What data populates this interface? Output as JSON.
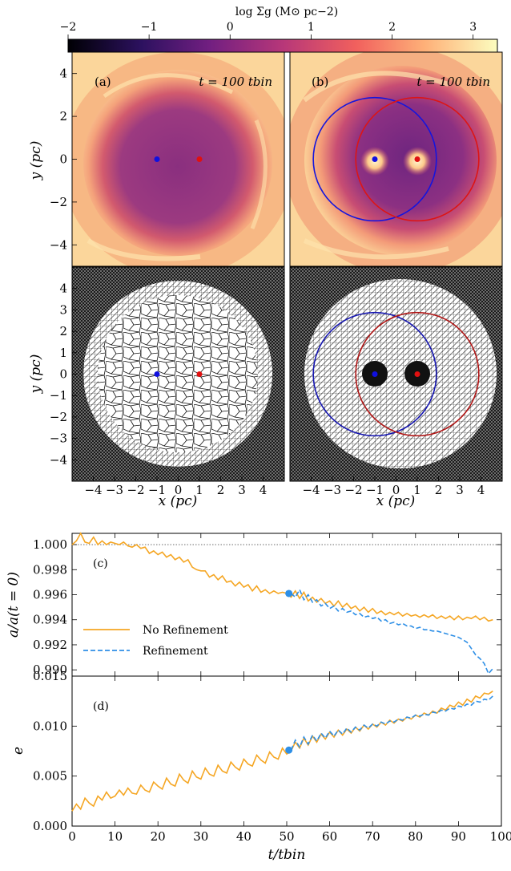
{
  "colorbar": {
    "label": "log Σg (M⊙ pc−2)",
    "ticks": [
      "−2",
      "−1",
      "0",
      "1",
      "2",
      "3"
    ],
    "tick_values": [
      -2,
      -1,
      0,
      1,
      2,
      3
    ],
    "range": [
      -2,
      3.3
    ],
    "colormap": [
      "#000004",
      "#2c115f",
      "#721f81",
      "#b73779",
      "#f1605d",
      "#feb078",
      "#fcfdbf"
    ]
  },
  "panels": {
    "a": {
      "label": "(a)",
      "time": "t = 100 tbin"
    },
    "b": {
      "label": "(b)",
      "time": "t = 100 tbin"
    }
  },
  "maps": {
    "ylabel": "y (pc)",
    "xlabel": "x (pc)",
    "yticks": [
      "4",
      "2",
      "0",
      "−2",
      "−4"
    ],
    "ytick_values": [
      4,
      2,
      0,
      -2,
      -4
    ],
    "mesh_yticks": [
      "4",
      "3",
      "2",
      "1",
      "0",
      "−1",
      "−2",
      "−3",
      "−4"
    ],
    "mesh_ytick_values": [
      4,
      3,
      2,
      1,
      0,
      -1,
      -2,
      -3,
      -4
    ],
    "xticks": [
      "−4",
      "−3",
      "−2",
      "−1",
      "0",
      "1",
      "2",
      "3",
      "4"
    ],
    "xtick_values": [
      -4,
      -3,
      -2,
      -1,
      0,
      1,
      2,
      3,
      4
    ],
    "range": [
      -5,
      5
    ],
    "blue_dot": {
      "x": -1,
      "y": 0,
      "color": "#1010e0"
    },
    "red_dot": {
      "x": 1,
      "y": 0,
      "color": "#e01010"
    },
    "circle_radius": 2.9
  },
  "chart_data": [
    {
      "type": "line",
      "panel_label": "(c)",
      "xlabel": "t/tbin",
      "ylabel": "a/a(t = 0)",
      "xlim": [
        0,
        100
      ],
      "ylim": [
        0.9895,
        1.0009
      ],
      "yticks": [
        "1.000",
        "0.998",
        "0.996",
        "0.994",
        "0.992",
        "0.990"
      ],
      "ytick_values": [
        1.0,
        0.998,
        0.996,
        0.994,
        0.992,
        0.99
      ],
      "reference_line": 1.0,
      "legend_position": "lower-left",
      "series": [
        {
          "name": "No Refinement",
          "color": "#f5a623",
          "style": "solid",
          "x": [
            0,
            1,
            2,
            3,
            4,
            5,
            6,
            7,
            8,
            9,
            10,
            11,
            12,
            13,
            14,
            15,
            16,
            17,
            18,
            19,
            20,
            21,
            22,
            23,
            24,
            25,
            26,
            27,
            28,
            29,
            30,
            31,
            32,
            33,
            34,
            35,
            36,
            37,
            38,
            39,
            40,
            41,
            42,
            43,
            44,
            45,
            46,
            47,
            48,
            49,
            50,
            51,
            52,
            53,
            54,
            55,
            56,
            57,
            58,
            59,
            60,
            61,
            62,
            63,
            64,
            65,
            66,
            67,
            68,
            69,
            70,
            71,
            72,
            73,
            74,
            75,
            76,
            77,
            78,
            79,
            80,
            81,
            82,
            83,
            84,
            85,
            86,
            87,
            88,
            89,
            90,
            91,
            92,
            93,
            94,
            95,
            96,
            97,
            98
          ],
          "y": [
            1.0,
            1.0003,
            1.0009,
            1.0002,
            1.0001,
            1.0006,
            1.0,
            1.0003,
            1.0,
            1.0002,
            1.0001,
            1.0,
            1.0002,
            0.9999,
            0.9998,
            1.0,
            0.9997,
            0.9998,
            0.9993,
            0.9995,
            0.9992,
            0.9994,
            0.999,
            0.9992,
            0.9988,
            0.999,
            0.9986,
            0.9988,
            0.9982,
            0.998,
            0.9979,
            0.9979,
            0.9974,
            0.9976,
            0.9972,
            0.9975,
            0.997,
            0.9971,
            0.9967,
            0.997,
            0.9966,
            0.9968,
            0.9963,
            0.9967,
            0.9962,
            0.9964,
            0.9961,
            0.9963,
            0.9961,
            0.9962,
            0.9961,
            0.9958,
            0.9963,
            0.9957,
            0.9962,
            0.9955,
            0.9958,
            0.9954,
            0.9957,
            0.9953,
            0.9955,
            0.9951,
            0.9955,
            0.995,
            0.9953,
            0.9949,
            0.9951,
            0.9947,
            0.995,
            0.9946,
            0.9949,
            0.9945,
            0.9947,
            0.9944,
            0.9946,
            0.9944,
            0.9946,
            0.9943,
            0.9945,
            0.9943,
            0.9944,
            0.9942,
            0.9944,
            0.9942,
            0.9944,
            0.9941,
            0.9943,
            0.9941,
            0.9943,
            0.994,
            0.9943,
            0.994,
            0.9942,
            0.9941,
            0.9943,
            0.994,
            0.9942,
            0.9939,
            0.994
          ]
        },
        {
          "name": "Refinement",
          "color": "#2e8fe6",
          "style": "dashed",
          "x": [
            51,
            52,
            53,
            54,
            55,
            56,
            57,
            58,
            59,
            60,
            61,
            62,
            63,
            64,
            65,
            66,
            67,
            68,
            69,
            70,
            71,
            72,
            73,
            74,
            75,
            76,
            77,
            78,
            79,
            80,
            81,
            82,
            83,
            84,
            85,
            86,
            87,
            88,
            89,
            90,
            91,
            92,
            93,
            94,
            95,
            96,
            97,
            98
          ],
          "y": [
            0.9961,
            0.9958,
            0.9964,
            0.9956,
            0.996,
            0.9954,
            0.9956,
            0.9951,
            0.9953,
            0.9949,
            0.9951,
            0.9947,
            0.9949,
            0.9946,
            0.9947,
            0.9944,
            0.9945,
            0.9942,
            0.9943,
            0.9941,
            0.9942,
            0.9939,
            0.994,
            0.9937,
            0.9938,
            0.9936,
            0.9937,
            0.9935,
            0.9935,
            0.9933,
            0.9934,
            0.9932,
            0.9932,
            0.9931,
            0.9931,
            0.993,
            0.9929,
            0.9928,
            0.9927,
            0.9926,
            0.9924,
            0.9922,
            0.9917,
            0.9912,
            0.9909,
            0.9905,
            0.9897,
            0.9901
          ]
        }
      ],
      "marker": {
        "x": 50.5,
        "y": 0.9961,
        "color": "#2e8fe6"
      }
    },
    {
      "type": "line",
      "panel_label": "(d)",
      "xlabel": "t/tbin",
      "ylabel": "e",
      "xlim": [
        0,
        100
      ],
      "ylim": [
        0,
        0.015
      ],
      "yticks": [
        "0.015",
        "0.010",
        "0.005",
        "0.000"
      ],
      "ytick_values": [
        0.015,
        0.01,
        0.005,
        0.0
      ],
      "xticks": [
        "0",
        "10",
        "20",
        "30",
        "40",
        "50",
        "60",
        "70",
        "80",
        "90",
        "100"
      ],
      "xtick_values": [
        0,
        10,
        20,
        30,
        40,
        50,
        60,
        70,
        80,
        90,
        100
      ],
      "series": [
        {
          "name": "No Refinement",
          "color": "#f5a623",
          "style": "solid",
          "x": [
            0,
            1,
            2,
            3,
            4,
            5,
            6,
            7,
            8,
            9,
            10,
            11,
            12,
            13,
            14,
            15,
            16,
            17,
            18,
            19,
            20,
            21,
            22,
            23,
            24,
            25,
            26,
            27,
            28,
            29,
            30,
            31,
            32,
            33,
            34,
            35,
            36,
            37,
            38,
            39,
            40,
            41,
            42,
            43,
            44,
            45,
            46,
            47,
            48,
            49,
            50,
            51,
            52,
            53,
            54,
            55,
            56,
            57,
            58,
            59,
            60,
            61,
            62,
            63,
            64,
            65,
            66,
            67,
            68,
            69,
            70,
            71,
            72,
            73,
            74,
            75,
            76,
            77,
            78,
            79,
            80,
            81,
            82,
            83,
            84,
            85,
            86,
            87,
            88,
            89,
            90,
            91,
            92,
            93,
            94,
            95,
            96,
            97,
            98
          ],
          "y": [
            0.0015,
            0.0022,
            0.0017,
            0.0028,
            0.0023,
            0.002,
            0.003,
            0.0026,
            0.0034,
            0.0028,
            0.003,
            0.0036,
            0.0031,
            0.0038,
            0.0033,
            0.0032,
            0.0041,
            0.0036,
            0.0034,
            0.0044,
            0.004,
            0.0037,
            0.0048,
            0.0042,
            0.004,
            0.0052,
            0.0046,
            0.0043,
            0.0055,
            0.0049,
            0.0047,
            0.0058,
            0.0052,
            0.005,
            0.0061,
            0.0055,
            0.0053,
            0.0064,
            0.0059,
            0.0056,
            0.0067,
            0.0062,
            0.006,
            0.0071,
            0.0066,
            0.0063,
            0.0074,
            0.0069,
            0.0067,
            0.0078,
            0.0072,
            0.0075,
            0.0084,
            0.0078,
            0.0088,
            0.0081,
            0.009,
            0.0084,
            0.0092,
            0.0087,
            0.0094,
            0.0089,
            0.0096,
            0.0091,
            0.0097,
            0.0093,
            0.0099,
            0.0095,
            0.0101,
            0.0097,
            0.0102,
            0.0099,
            0.0104,
            0.0101,
            0.0106,
            0.0103,
            0.0107,
            0.0105,
            0.0109,
            0.0107,
            0.0111,
            0.0109,
            0.0113,
            0.0111,
            0.0115,
            0.0113,
            0.0118,
            0.0116,
            0.0121,
            0.0119,
            0.0124,
            0.0121,
            0.0127,
            0.0124,
            0.013,
            0.0128,
            0.0133,
            0.0132,
            0.0135
          ]
        },
        {
          "name": "Refinement",
          "color": "#2e8fe6",
          "style": "dashed",
          "x": [
            51,
            52,
            53,
            54,
            55,
            56,
            57,
            58,
            59,
            60,
            61,
            62,
            63,
            64,
            65,
            66,
            67,
            68,
            69,
            70,
            71,
            72,
            73,
            74,
            75,
            76,
            77,
            78,
            79,
            80,
            81,
            82,
            83,
            84,
            85,
            86,
            87,
            88,
            89,
            90,
            91,
            92,
            93,
            94,
            95,
            96,
            97,
            98
          ],
          "y": [
            0.0076,
            0.0086,
            0.0079,
            0.0089,
            0.0082,
            0.0091,
            0.0085,
            0.0093,
            0.0088,
            0.0095,
            0.009,
            0.0096,
            0.0092,
            0.0098,
            0.0094,
            0.0099,
            0.0096,
            0.0101,
            0.0098,
            0.0102,
            0.01,
            0.0104,
            0.0102,
            0.0105,
            0.0104,
            0.0107,
            0.0106,
            0.0109,
            0.0108,
            0.0111,
            0.011,
            0.0112,
            0.0111,
            0.0114,
            0.0113,
            0.0116,
            0.0115,
            0.0118,
            0.0117,
            0.012,
            0.0119,
            0.0122,
            0.0121,
            0.0125,
            0.0124,
            0.0127,
            0.0126,
            0.013
          ]
        }
      ],
      "marker": {
        "x": 50.5,
        "y": 0.0076,
        "color": "#2e8fe6"
      }
    }
  ]
}
